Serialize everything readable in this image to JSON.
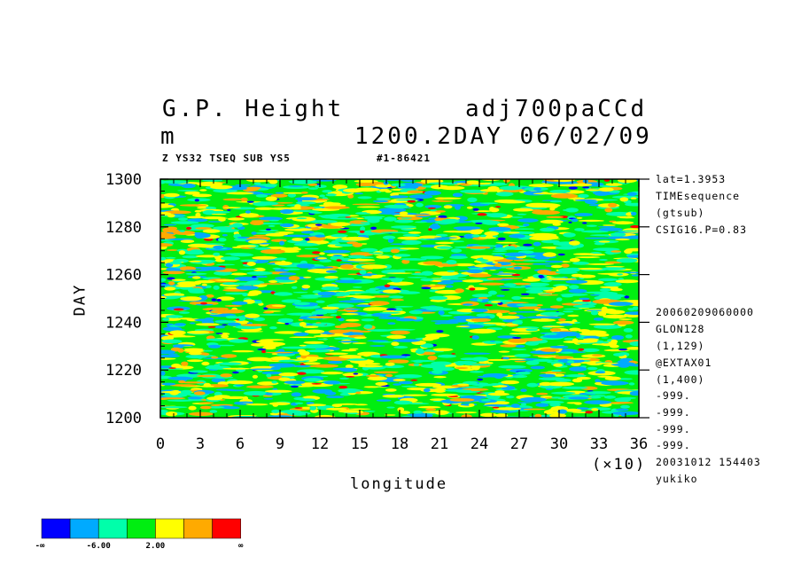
{
  "header": {
    "title_left": "G.P. Height",
    "title_right": "adj700paCCd",
    "units": "m",
    "time_label": "1200.2DAY 06/02/09",
    "sub_left": "Z YS32 TSEQ SUB YS5",
    "sub_right": "#1-86421"
  },
  "side_info": {
    "top": [
      "lat=1.3953",
      "TIMEsequence",
      "(gtsub)",
      "CSIG16.P=0.83"
    ],
    "middle": [
      "20060209060000",
      "GLON128",
      "(1,129)",
      "@EXTAX01",
      "(1,400)",
      "-999.",
      "-999.",
      "-999.",
      "-999."
    ],
    "bottom": [
      "20031012 154403",
      "yukiko"
    ]
  },
  "colors": {
    "palette": [
      "#0000ff",
      "#00aaff",
      "#00ffaa",
      "#00ee11",
      "#ffff00",
      "#ffaa00",
      "#ff0000"
    ],
    "axis": "#000000",
    "background": "#ffffff"
  },
  "colorbar": {
    "labels": [
      "-∞",
      "-6.00",
      "2.00",
      "∞"
    ]
  },
  "chart_data": {
    "type": "heatmap",
    "title": "G.P. Height",
    "xlabel": "longitude",
    "ylabel": "DAY",
    "x_multiplier_label": "(×10)",
    "xlim": [
      0,
      36
    ],
    "ylim": [
      1200,
      1300
    ],
    "x_ticks": [
      "0",
      "3",
      "6",
      "9",
      "12",
      "15",
      "18",
      "21",
      "24",
      "27",
      "30",
      "33",
      "36"
    ],
    "y_ticks": [
      "1200",
      "1220",
      "1240",
      "1260",
      "1280",
      "1300"
    ],
    "color_levels": [
      "-∞",
      "-6.00",
      "2.00",
      "∞"
    ],
    "grid": false,
    "legend": "bottom-left colorbar"
  }
}
